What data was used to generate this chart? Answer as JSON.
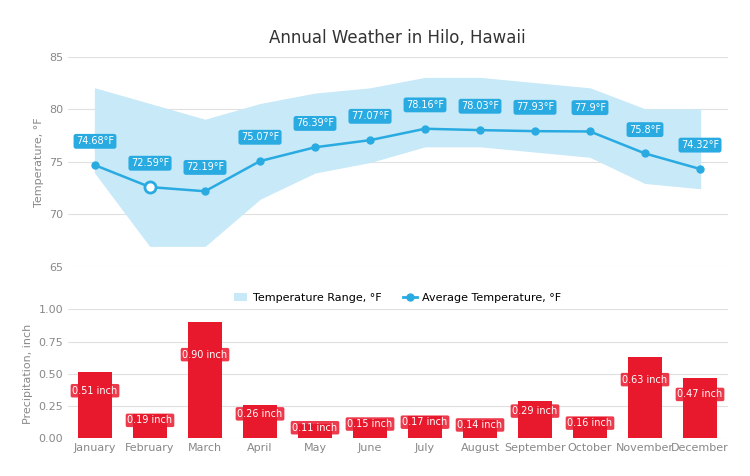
{
  "title": "Annual Weather in Hilo, Hawaii",
  "months": [
    "January",
    "February",
    "March",
    "April",
    "May",
    "June",
    "July",
    "August",
    "September",
    "October",
    "November",
    "December"
  ],
  "avg_temp": [
    74.68,
    72.59,
    72.19,
    75.07,
    76.39,
    77.07,
    78.16,
    78.03,
    77.93,
    77.9,
    75.8,
    74.32
  ],
  "temp_high": [
    82.0,
    80.5,
    79.0,
    80.5,
    81.5,
    82.0,
    83.0,
    83.0,
    82.5,
    82.0,
    80.0,
    80.0
  ],
  "temp_low": [
    74.0,
    67.0,
    67.0,
    71.5,
    74.0,
    75.0,
    76.5,
    76.5,
    76.0,
    75.5,
    73.0,
    72.5
  ],
  "precipitation": [
    0.51,
    0.19,
    0.9,
    0.26,
    0.11,
    0.15,
    0.17,
    0.14,
    0.29,
    0.16,
    0.63,
    0.47
  ],
  "temp_line_color": "#29ABE2",
  "temp_range_color": "#C8E9F7",
  "bar_color": "#E8192C",
  "background_color": "#FFFFFF",
  "grid_color": "#E0E0E0",
  "label_box_color": "#29ABE2",
  "label_text_color": "#FFFFFF",
  "bar_label_box_color": "#E8192C",
  "ylabel_temp": "Temperature, °F",
  "ylabel_precip": "Precipitation, inch",
  "xlabel_precip": "Precipitation, inch",
  "ylim_temp": [
    65,
    85
  ],
  "ylim_precip": [
    0,
    1.0
  ],
  "yticks_temp": [
    65,
    70,
    75,
    80,
    85
  ],
  "yticks_precip": [
    0,
    0.25,
    0.5,
    0.75,
    1.0
  ],
  "legend_temp_range": "Temperature Range, °F",
  "legend_avg_temp": "Average Temperature, °F",
  "special_open_marker_index": 1,
  "title_fontsize": 12,
  "axis_fontsize": 8,
  "label_fontsize": 7,
  "tick_color": "#888888"
}
